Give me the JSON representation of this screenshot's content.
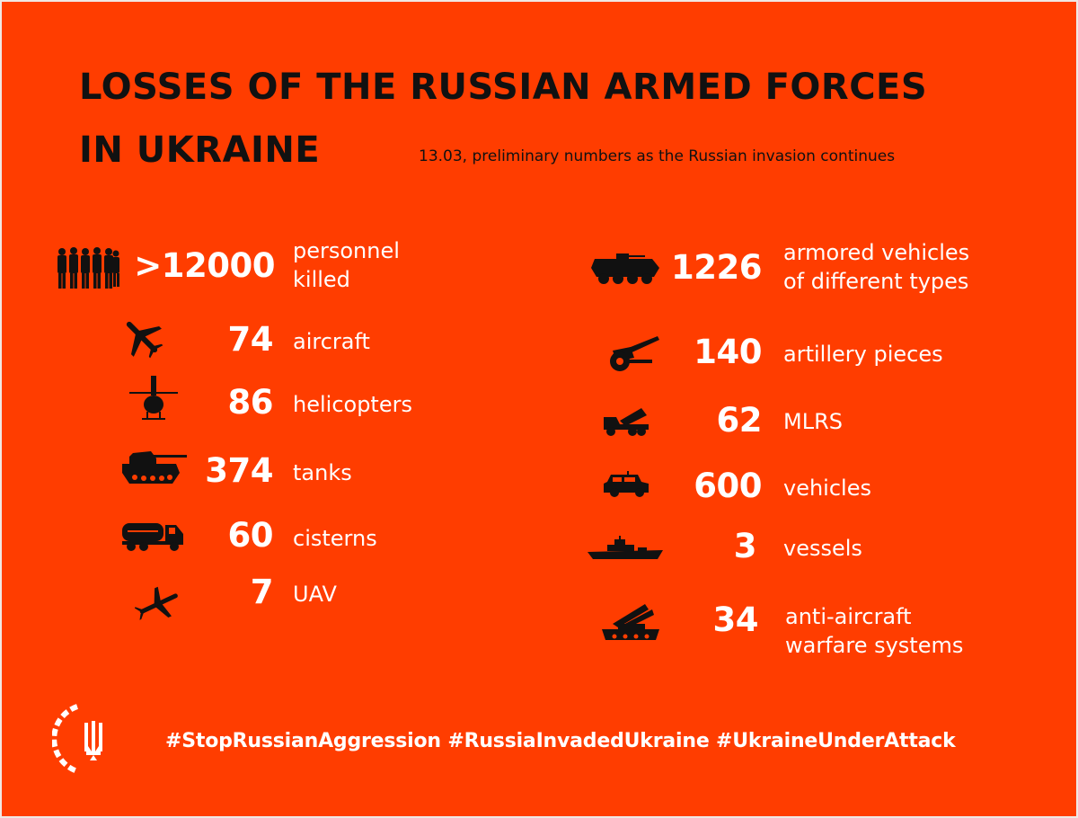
{
  "header": {
    "title_line1": "LOSSES OF THE RUSSIAN ARMED FORCES",
    "title_line2": "IN UKRAINE",
    "subtitle": "13.03, preliminary numbers as the Russian invasion continues"
  },
  "left": [
    {
      "icon": "soldiers-icon",
      "value": ">12000",
      "label1": "personnel",
      "label2": "killed"
    },
    {
      "icon": "aircraft-icon",
      "value": "74",
      "label1": "aircraft"
    },
    {
      "icon": "helicopter-icon",
      "value": "86",
      "label1": "helicopters"
    },
    {
      "icon": "tank-icon",
      "value": "374",
      "label1": "tanks"
    },
    {
      "icon": "cistern-truck-icon",
      "value": "60",
      "label1": "cisterns"
    },
    {
      "icon": "uav-icon",
      "value": "7",
      "label1": "UAV"
    }
  ],
  "right": [
    {
      "icon": "armored-vehicle-icon",
      "value": "1226",
      "label1": "armored vehicles",
      "label2": "of different types"
    },
    {
      "icon": "artillery-icon",
      "value": "140",
      "label1": "artillery pieces"
    },
    {
      "icon": "mlrs-icon",
      "value": "62",
      "label1": "MLRS"
    },
    {
      "icon": "jeep-icon",
      "value": "600",
      "label1": "vehicles"
    },
    {
      "icon": "warship-icon",
      "value": "3",
      "label1": "vessels"
    },
    {
      "icon": "anti-aircraft-icon",
      "value": "34",
      "label1": "anti-aircraft",
      "label2": "warfare systems"
    }
  ],
  "footer": {
    "hashtags": "#StopRussianAggression #RussiaInvadedUkraine #UkraineUnderAttack",
    "emblem_icon": "trident-emblem-icon"
  },
  "colors": {
    "background": "#ff3d00",
    "title": "#111111",
    "text": "#ffffff",
    "icons": "#111111"
  }
}
